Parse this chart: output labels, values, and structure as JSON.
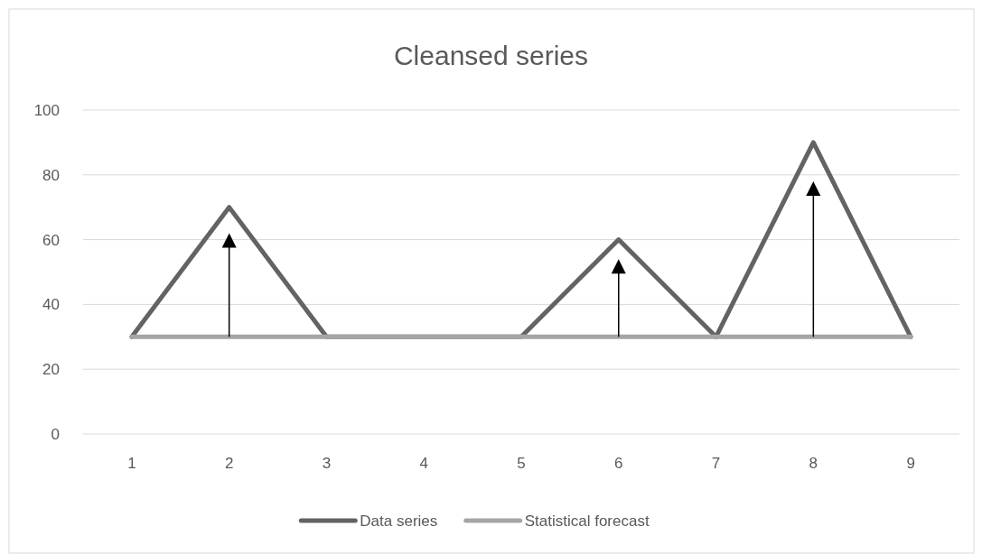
{
  "chart_data": {
    "type": "line",
    "title": "Cleansed series",
    "categories": [
      "1",
      "2",
      "3",
      "4",
      "5",
      "6",
      "7",
      "8",
      "9"
    ],
    "series": [
      {
        "name": "Data series",
        "color": "#636363",
        "values": [
          30,
          70,
          30,
          30,
          30,
          60,
          30,
          90,
          30
        ]
      },
      {
        "name": "Statistical forecast",
        "color": "#a5a5a5",
        "values": [
          30,
          30,
          30,
          30,
          30,
          30,
          30,
          30,
          30
        ]
      }
    ],
    "ylim": [
      0,
      100
    ],
    "yticks": [
      0,
      20,
      40,
      60,
      80,
      100
    ],
    "grid": "y",
    "legend": "bottom",
    "marker": "none",
    "line_style": "solid"
  }
}
